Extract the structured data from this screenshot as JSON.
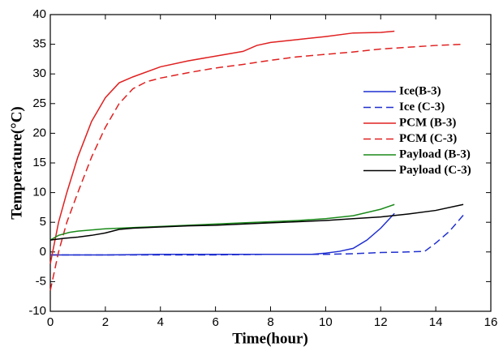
{
  "chart_data": {
    "type": "line",
    "xlabel": "Time(hour)",
    "ylabel": "Temperature(°C)",
    "xlim": [
      0,
      16
    ],
    "xticks": [
      0,
      2,
      4,
      6,
      8,
      10,
      12,
      14,
      16
    ],
    "ylim": [
      -10,
      40
    ],
    "yticks": [
      -10,
      -5,
      0,
      5,
      10,
      15,
      20,
      25,
      30,
      35,
      40
    ],
    "grid": false,
    "legend": "right",
    "series": [
      {
        "name": "Ice(B-3)",
        "color": "#1f2fd0",
        "dash": false,
        "x": [
          0,
          2,
          4,
          6,
          8,
          9.5,
          10,
          10.5,
          11,
          11.5,
          12,
          12.5
        ],
        "values": [
          -0.5,
          -0.5,
          -0.4,
          -0.4,
          -0.4,
          -0.4,
          -0.2,
          0.1,
          0.6,
          2,
          4,
          6.5
        ]
      },
      {
        "name": "Ice (C-3)",
        "color": "#1f2fd0",
        "dash": true,
        "x": [
          0,
          2,
          4,
          6,
          8,
          10,
          11,
          12,
          13,
          13.6,
          14,
          14.5,
          15
        ],
        "values": [
          -0.5,
          -0.5,
          -0.5,
          -0.5,
          -0.4,
          -0.4,
          -0.3,
          -0.1,
          0,
          0.1,
          1.5,
          3.5,
          6.2
        ]
      },
      {
        "name": "PCM (B-3)",
        "color": "#e02020",
        "dash": false,
        "x": [
          0,
          0.3,
          0.6,
          1,
          1.5,
          2,
          2.5,
          3,
          4,
          5,
          6,
          7,
          7.5,
          8,
          9,
          10,
          11,
          12,
          12.5
        ],
        "values": [
          -2,
          5,
          10,
          16,
          22,
          26,
          28.5,
          29.5,
          31.2,
          32.2,
          33,
          33.8,
          34.8,
          35.3,
          35.8,
          36.3,
          36.9,
          37,
          37.2
        ]
      },
      {
        "name": "PCM (C-3)",
        "color": "#e02020",
        "dash": true,
        "x": [
          0,
          0.3,
          0.6,
          1,
          1.5,
          2,
          2.5,
          3,
          3.5,
          4,
          5,
          6,
          7,
          8,
          9,
          10,
          11,
          12,
          13,
          14,
          15
        ],
        "values": [
          -6.5,
          0,
          5,
          10,
          16,
          21,
          25,
          27.5,
          28.7,
          29.3,
          30.2,
          31,
          31.6,
          32.3,
          32.9,
          33.3,
          33.7,
          34.2,
          34.5,
          34.8,
          35
        ]
      },
      {
        "name": "Payload (B-3)",
        "color": "#1a8a1a",
        "dash": false,
        "x": [
          0,
          0.3,
          0.7,
          1,
          2,
          3,
          4,
          5,
          6,
          7,
          8,
          9,
          10,
          11,
          12,
          12.5
        ],
        "values": [
          2,
          2.8,
          3.3,
          3.5,
          3.9,
          4.1,
          4.3,
          4.5,
          4.7,
          4.9,
          5.1,
          5.3,
          5.6,
          6.1,
          7.2,
          8
        ]
      },
      {
        "name": "Payload (C-3)",
        "color": "#000000",
        "dash": false,
        "x": [
          0,
          0.5,
          1,
          1.5,
          2,
          2.5,
          3,
          4,
          5,
          6,
          7,
          8,
          9,
          10,
          11,
          12,
          13,
          14,
          15
        ],
        "values": [
          2,
          2.3,
          2.5,
          2.8,
          3.2,
          3.8,
          4,
          4.2,
          4.4,
          4.5,
          4.7,
          4.9,
          5.1,
          5.3,
          5.6,
          5.9,
          6.4,
          7,
          8
        ]
      }
    ]
  }
}
